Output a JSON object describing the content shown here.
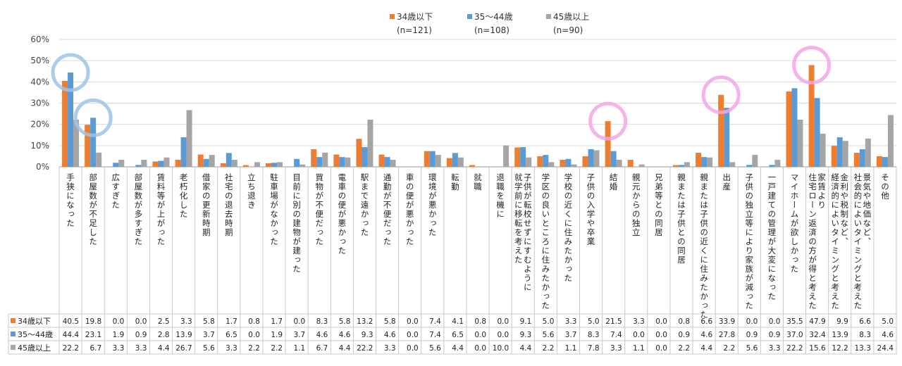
{
  "chart_data": {
    "type": "bar",
    "ylim": [
      0,
      60
    ],
    "yticks": [
      "0%",
      "10%",
      "20%",
      "30%",
      "40%",
      "50%",
      "60%"
    ],
    "grid": true,
    "legend_position": "top-center",
    "categories": [
      "手狭になった",
      "部屋数が不足した",
      "広すぎた",
      "部屋数が多すぎた",
      "賃料等が上がった",
      "老朽化した",
      "借家の更新時期",
      "社宅の退去時期",
      "立ち退き",
      "駐車場がなかった",
      "目前に別の建物が建った",
      "買物が不便だった",
      "電車の便が悪かった",
      "駅まで遠かった",
      "通勤が不便だった",
      "車の便が悪かった",
      "環境が悪かった",
      "転勤",
      "就職",
      "退職を機に",
      "子供が転校せずにすむように就学前に移転を考えた",
      "学区の良いところに住みたかった",
      "学校の近くに住みたかった",
      "子供の入学や卒業",
      "結婚",
      "親元からの独立",
      "兄弟等との同居",
      "親または子供との同居",
      "親または子供の近くに住みたかった",
      "出産",
      "子供の独立等により家族が減った",
      "一戸建ての管理が大変になった",
      "マイホームが欲しかった",
      "家賃より住宅ローン返済の方が得と考えた",
      "金利や税制など、経済的によいタイミングと考えた",
      "景気や地価など、社会的によいタイミングと考えた",
      "その他"
    ],
    "category_lines": [
      [
        "手狭になった"
      ],
      [
        "部屋数が不足した"
      ],
      [
        "広すぎた"
      ],
      [
        "部屋数が多すぎた"
      ],
      [
        "賃料等が上がった"
      ],
      [
        "老朽化した"
      ],
      [
        "借家の更新時期"
      ],
      [
        "社宅の退去時期"
      ],
      [
        "立ち退き"
      ],
      [
        "駐車場がなかった"
      ],
      [
        "目前に別の建物が建った"
      ],
      [
        "買物が不便だった"
      ],
      [
        "電車の便が悪かった"
      ],
      [
        "駅まで遠かった"
      ],
      [
        "通勤が不便だった"
      ],
      [
        "車の便が悪かった"
      ],
      [
        "環境が悪かった"
      ],
      [
        "転勤"
      ],
      [
        "就職"
      ],
      [
        "退職を機に"
      ],
      [
        "子供が転校せずにすむように",
        "就学前に移転を考えた"
      ],
      [
        "学区の良いところに住みたかった"
      ],
      [
        "学校の近くに住みたかった"
      ],
      [
        "子供の入学や卒業"
      ],
      [
        "結婚"
      ],
      [
        "親元からの独立"
      ],
      [
        "兄弟等との同居"
      ],
      [
        "親または子供との同居"
      ],
      [
        "親または子供の近くに住みたかった"
      ],
      [
        "出産"
      ],
      [
        "子供の独立等により家族が減った"
      ],
      [
        "一戸建ての管理が大変になった"
      ],
      [
        "マイホームが欲しかった"
      ],
      [
        "家賃より",
        "住宅ローン返済の方が得と考えた"
      ],
      [
        "金利や税制など、",
        "経済的によいタイミングと考えた"
      ],
      [
        "景気や地価など、",
        "社会的によいタイミングと考えた"
      ],
      [
        "その他"
      ]
    ],
    "series": [
      {
        "name": "34歳以下",
        "n_label": "(n=121)",
        "color": "#ED7D31",
        "values": [
          40.5,
          19.8,
          0.0,
          0.0,
          2.5,
          3.3,
          5.8,
          1.7,
          0.8,
          1.7,
          0.0,
          8.3,
          5.8,
          13.2,
          5.8,
          0.0,
          7.4,
          4.1,
          0.8,
          0.0,
          9.1,
          5.0,
          3.3,
          5.0,
          21.5,
          3.3,
          0.0,
          0.8,
          6.6,
          33.9,
          0.0,
          0.0,
          35.5,
          47.9,
          9.9,
          6.6,
          5.0
        ]
      },
      {
        "name": "35～44歳",
        "n_label": "(n=108)",
        "color": "#5B9BD5",
        "values": [
          44.4,
          23.1,
          1.9,
          0.9,
          2.8,
          13.9,
          3.7,
          6.5,
          0.0,
          1.9,
          3.7,
          4.6,
          4.6,
          9.3,
          4.6,
          0.0,
          7.4,
          6.5,
          0.0,
          0.0,
          9.3,
          5.6,
          3.7,
          8.3,
          7.4,
          0.0,
          0.0,
          0.9,
          4.6,
          27.8,
          0.9,
          0.9,
          37.0,
          32.4,
          13.9,
          8.3,
          4.6
        ]
      },
      {
        "name": "45歳以上",
        "n_label": "(n=90)",
        "color": "#A5A5A5",
        "values": [
          22.2,
          6.7,
          3.3,
          3.3,
          4.4,
          26.7,
          5.6,
          3.3,
          2.2,
          2.2,
          1.1,
          6.7,
          4.4,
          22.2,
          3.3,
          0.0,
          5.6,
          4.4,
          0.0,
          10.0,
          4.4,
          2.2,
          1.1,
          7.8,
          3.3,
          1.1,
          0.0,
          2.2,
          4.4,
          2.2,
          5.6,
          3.3,
          22.2,
          15.6,
          12.2,
          13.3,
          24.4
        ]
      }
    ],
    "highlight_circles": [
      {
        "category_index": 0,
        "series_index": 1,
        "color": "#9DC3E6"
      },
      {
        "category_index": 1,
        "series_index": 1,
        "color": "#9DC3E6"
      },
      {
        "category_index": 24,
        "series_index": 0,
        "color": "#F4A6E6"
      },
      {
        "category_index": 29,
        "series_index": 0,
        "color": "#F4A6E6"
      },
      {
        "category_index": 33,
        "series_index": 0,
        "color": "#F4A6E6"
      }
    ]
  }
}
